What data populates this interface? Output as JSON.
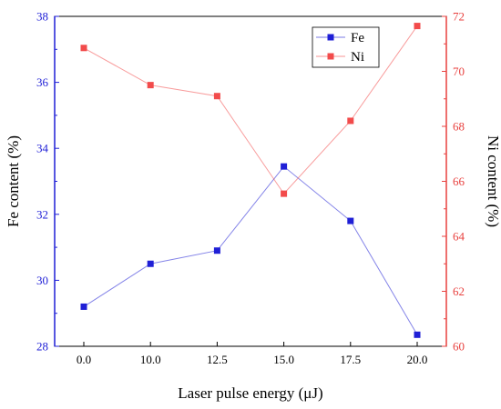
{
  "chart_data": {
    "type": "line",
    "xlabel": "Laser pulse energy (μJ)",
    "categories": [
      "0.0",
      "10.0",
      "12.5",
      "15.0",
      "17.5",
      "20.0"
    ],
    "y_left": {
      "label": "Fe content (%)",
      "ylim": [
        28,
        38
      ],
      "ticks": [
        "28",
        "30",
        "32",
        "34",
        "36",
        "38"
      ],
      "color": "#1f1fd6"
    },
    "y_right": {
      "label": "Ni content (%)",
      "ylim": [
        60,
        72
      ],
      "ticks": [
        "60",
        "62",
        "64",
        "66",
        "68",
        "70",
        "72"
      ],
      "color": "#e8413f"
    },
    "series": [
      {
        "name": "Fe",
        "axis": "left",
        "color": "#1f1fd6",
        "values": [
          29.2,
          30.5,
          30.9,
          33.45,
          31.8,
          28.35
        ]
      },
      {
        "name": "Ni",
        "axis": "right",
        "color": "#f24b4b",
        "values": [
          70.85,
          69.5,
          69.1,
          65.55,
          68.2,
          71.65
        ]
      }
    ],
    "legend_position": "top-right",
    "grid": false
  }
}
